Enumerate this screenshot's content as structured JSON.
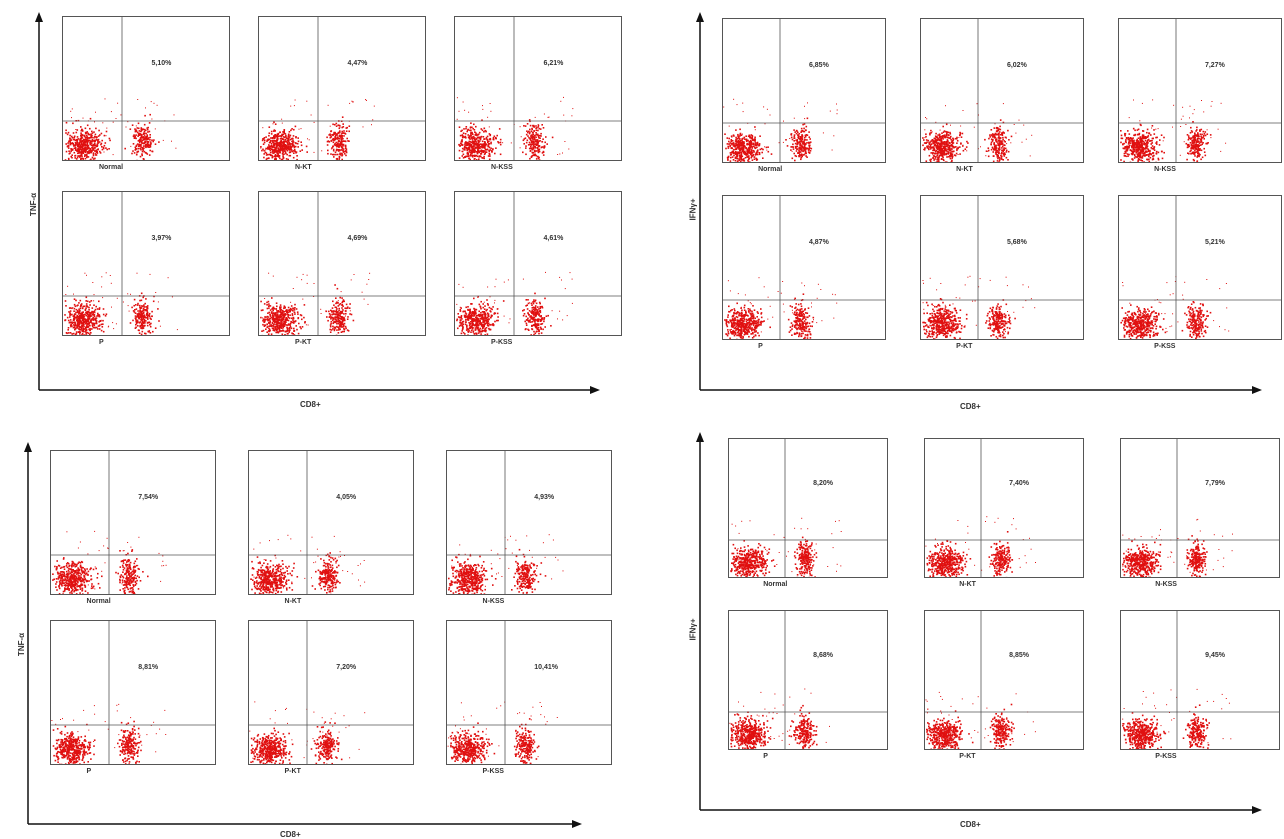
{
  "quadrants": [
    {
      "x_label": "CD8+",
      "y_label": "TNF-α",
      "panels": [
        {
          "name": "Normal",
          "percent": "5,10%"
        },
        {
          "name": "N-KT",
          "percent": "4,47%"
        },
        {
          "name": "N-KSS",
          "percent": "6,21%"
        },
        {
          "name": "P",
          "percent": "3,97%"
        },
        {
          "name": "P-KT",
          "percent": "4,69%"
        },
        {
          "name": "P-KSS",
          "percent": "4,61%"
        }
      ]
    },
    {
      "x_label": "CD8+",
      "y_label": "IFNγ+",
      "panels": [
        {
          "name": "Normal",
          "percent": "6,85%"
        },
        {
          "name": "N-KT",
          "percent": "6,02%"
        },
        {
          "name": "N-KSS",
          "percent": "7,27%"
        },
        {
          "name": "P",
          "percent": "4,87%"
        },
        {
          "name": "P-KT",
          "percent": "5,68%"
        },
        {
          "name": "P-KSS",
          "percent": "5,21%"
        }
      ]
    },
    {
      "x_label": "CD8+",
      "y_label": "TNF-α",
      "panels": [
        {
          "name": "Normal",
          "percent": "7,54%"
        },
        {
          "name": "N-KT",
          "percent": "4,05%"
        },
        {
          "name": "N-KSS",
          "percent": "4,93%"
        },
        {
          "name": "P",
          "percent": "8,81%"
        },
        {
          "name": "P-KT",
          "percent": "7,20%"
        },
        {
          "name": "P-KSS",
          "percent": "10,41%"
        }
      ]
    },
    {
      "x_label": "CD8+",
      "y_label": "IFNγ+",
      "panels": [
        {
          "name": "Normal",
          "percent": "8,20%"
        },
        {
          "name": "N-KT",
          "percent": "7,40%"
        },
        {
          "name": "N-KSS",
          "percent": "7,79%"
        },
        {
          "name": "P",
          "percent": "8,68%"
        },
        {
          "name": "P-KT",
          "percent": "8,85%"
        },
        {
          "name": "P-KSS",
          "percent": "9,45%"
        }
      ]
    }
  ],
  "colors": {
    "dots": "#e01010",
    "axis": "#111111",
    "gate": "#555555"
  }
}
